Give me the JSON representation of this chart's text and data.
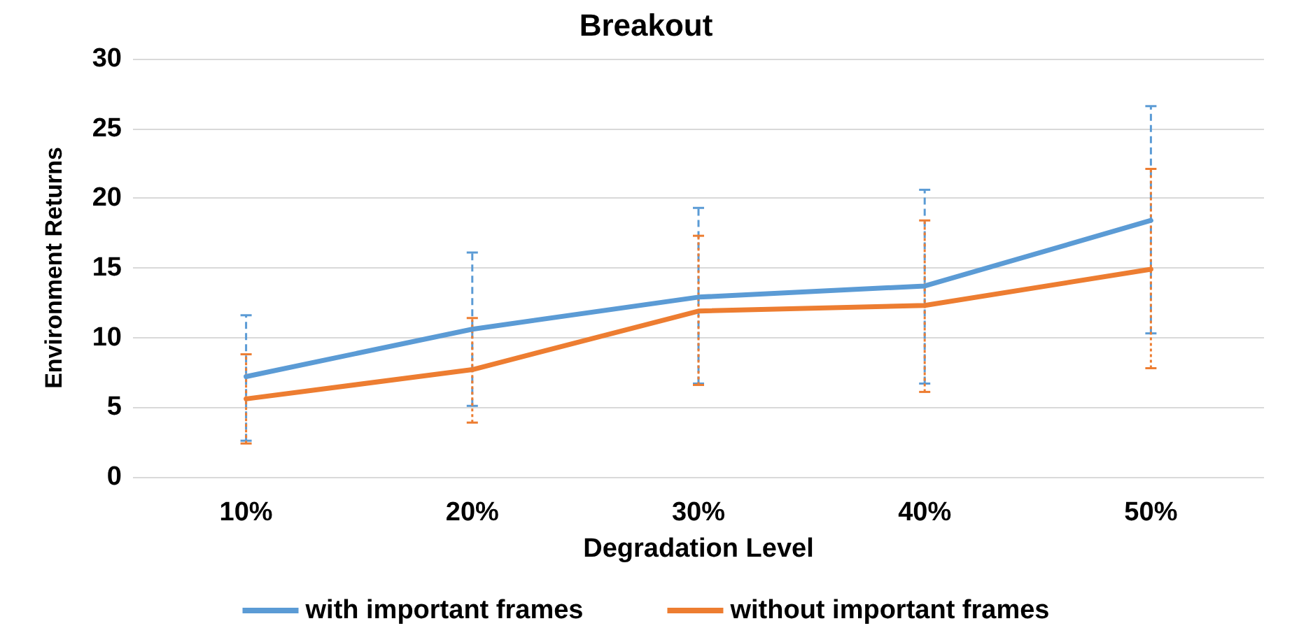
{
  "chart_data": {
    "type": "line",
    "title": "Breakout",
    "xlabel": "Degradation Level",
    "ylabel": "Environment Returns",
    "categories": [
      "10%",
      "20%",
      "30%",
      "40%",
      "50%"
    ],
    "series": [
      {
        "name": "with important frames",
        "color": "#5b9bd5",
        "values": [
          7.2,
          10.6,
          12.9,
          13.7,
          18.4
        ],
        "errors": [
          [
            2.6,
            11.6
          ],
          [
            5.1,
            16.1
          ],
          [
            6.7,
            19.3
          ],
          [
            6.7,
            20.6
          ],
          [
            10.3,
            26.6
          ]
        ]
      },
      {
        "name": "without important frames",
        "color": "#ed7d31",
        "values": [
          5.6,
          7.7,
          11.9,
          12.3,
          14.9
        ],
        "errors": [
          [
            2.4,
            8.8
          ],
          [
            3.9,
            11.4
          ],
          [
            6.6,
            17.3
          ],
          [
            6.1,
            18.4
          ],
          [
            7.8,
            22.1
          ]
        ]
      }
    ],
    "ylim": [
      0,
      30
    ],
    "yticks": [
      0,
      5,
      10,
      15,
      20,
      25,
      30
    ],
    "grid": "y",
    "legend": "bottom",
    "marker": "none",
    "line_style": "solid"
  }
}
